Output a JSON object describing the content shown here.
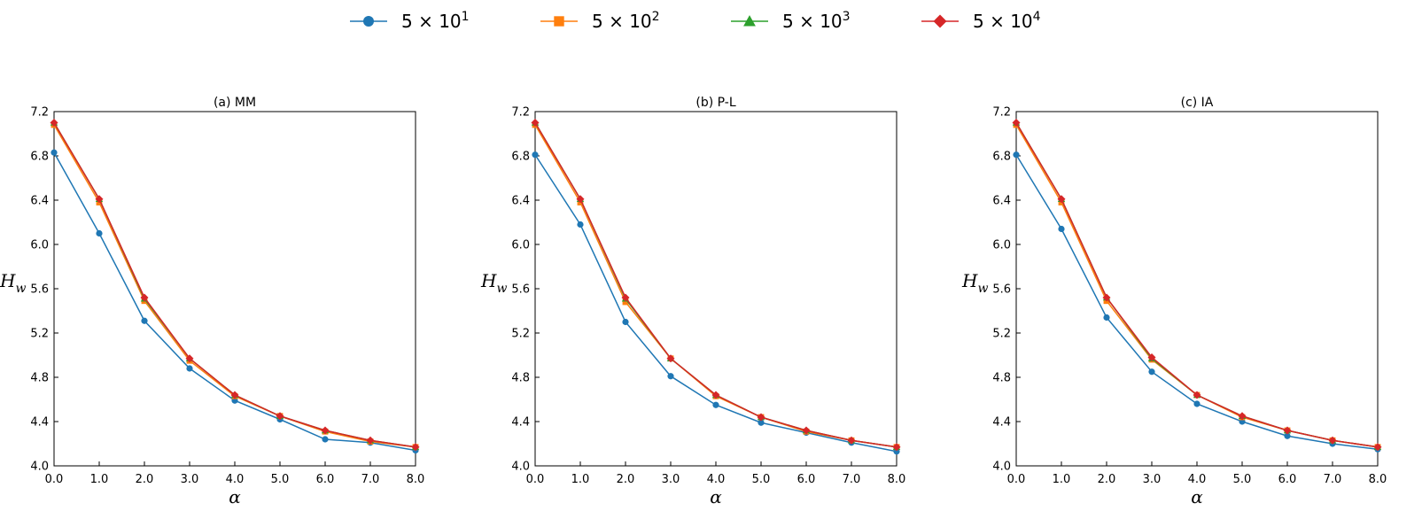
{
  "legend": {
    "placement": "top-center",
    "entries": [
      {
        "base": "5 × 10",
        "exp": "1",
        "color": "#1f77b4",
        "marker": "circle"
      },
      {
        "base": "5 × 10",
        "exp": "2",
        "color": "#ff7f0e",
        "marker": "square"
      },
      {
        "base": "5 × 10",
        "exp": "3",
        "color": "#2ca02c",
        "marker": "triangle"
      },
      {
        "base": "5 × 10",
        "exp": "4",
        "color": "#d62728",
        "marker": "diamond"
      }
    ]
  },
  "chart_data": [
    {
      "type": "line",
      "title": "(a) MM",
      "xlabel": "α",
      "ylabel": "H",
      "ylabel_sub": "w",
      "x": [
        0,
        1,
        2,
        3,
        4,
        5,
        6,
        7,
        8
      ],
      "xticks": [
        "0.0",
        "1.0",
        "2.0",
        "3.0",
        "4.0",
        "5.0",
        "6.0",
        "7.0",
        "8.0"
      ],
      "yticks": [
        "4.0",
        "4.4",
        "4.8",
        "5.2",
        "5.6",
        "6.0",
        "6.4",
        "6.8",
        "7.2"
      ],
      "xlim": [
        0,
        8
      ],
      "ylim": [
        4.0,
        7.2
      ],
      "grid": false,
      "series": [
        {
          "values": [
            6.83,
            6.1,
            5.31,
            4.88,
            4.59,
            4.42,
            4.24,
            4.21,
            4.14
          ]
        },
        {
          "values": [
            7.08,
            6.38,
            5.49,
            4.95,
            4.63,
            4.45,
            4.31,
            4.22,
            4.17
          ]
        },
        {
          "values": [
            7.1,
            6.41,
            5.51,
            4.97,
            4.64,
            4.45,
            4.32,
            4.23,
            4.17
          ]
        },
        {
          "values": [
            7.1,
            6.41,
            5.52,
            4.97,
            4.64,
            4.45,
            4.32,
            4.23,
            4.17
          ]
        }
      ]
    },
    {
      "type": "line",
      "title": "(b) P-L",
      "xlabel": "α",
      "ylabel": "H",
      "ylabel_sub": "w",
      "x": [
        0,
        1,
        2,
        3,
        4,
        5,
        6,
        7,
        8
      ],
      "xticks": [
        "0.0",
        "1.0",
        "2.0",
        "3.0",
        "4.0",
        "5.0",
        "6.0",
        "7.0",
        "8.0"
      ],
      "yticks": [
        "4.0",
        "4.4",
        "4.8",
        "5.2",
        "5.6",
        "6.0",
        "6.4",
        "6.8",
        "7.2"
      ],
      "xlim": [
        0,
        8
      ],
      "ylim": [
        4.0,
        7.2
      ],
      "grid": false,
      "series": [
        {
          "values": [
            6.81,
            6.18,
            5.3,
            4.81,
            4.55,
            4.39,
            4.3,
            4.21,
            4.13
          ]
        },
        {
          "values": [
            7.08,
            6.38,
            5.48,
            4.97,
            4.63,
            4.44,
            4.31,
            4.23,
            4.17
          ]
        },
        {
          "values": [
            7.1,
            6.41,
            5.51,
            4.97,
            4.64,
            4.44,
            4.32,
            4.23,
            4.17
          ]
        },
        {
          "values": [
            7.1,
            6.41,
            5.52,
            4.97,
            4.64,
            4.44,
            4.32,
            4.23,
            4.17
          ]
        }
      ]
    },
    {
      "type": "line",
      "title": "(c) IA",
      "xlabel": "α",
      "ylabel": "H",
      "ylabel_sub": "w",
      "x": [
        0,
        1,
        2,
        3,
        4,
        5,
        6,
        7,
        8
      ],
      "xticks": [
        "0.0",
        "1.0",
        "2.0",
        "3.0",
        "4.0",
        "5.0",
        "6.0",
        "7.0",
        "8.0"
      ],
      "yticks": [
        "4.0",
        "4.4",
        "4.8",
        "5.2",
        "5.6",
        "6.0",
        "6.4",
        "6.8",
        "7.2"
      ],
      "xlim": [
        0,
        8
      ],
      "ylim": [
        4.0,
        7.2
      ],
      "grid": false,
      "series": [
        {
          "values": [
            6.81,
            6.14,
            5.34,
            4.85,
            4.56,
            4.4,
            4.27,
            4.2,
            4.15
          ]
        },
        {
          "values": [
            7.08,
            6.38,
            5.49,
            4.96,
            4.64,
            4.44,
            4.32,
            4.23,
            4.17
          ]
        },
        {
          "values": [
            7.1,
            6.41,
            5.52,
            4.97,
            4.64,
            4.45,
            4.32,
            4.23,
            4.17
          ]
        },
        {
          "values": [
            7.1,
            6.41,
            5.52,
            4.98,
            4.64,
            4.45,
            4.32,
            4.23,
            4.17
          ]
        }
      ]
    }
  ]
}
